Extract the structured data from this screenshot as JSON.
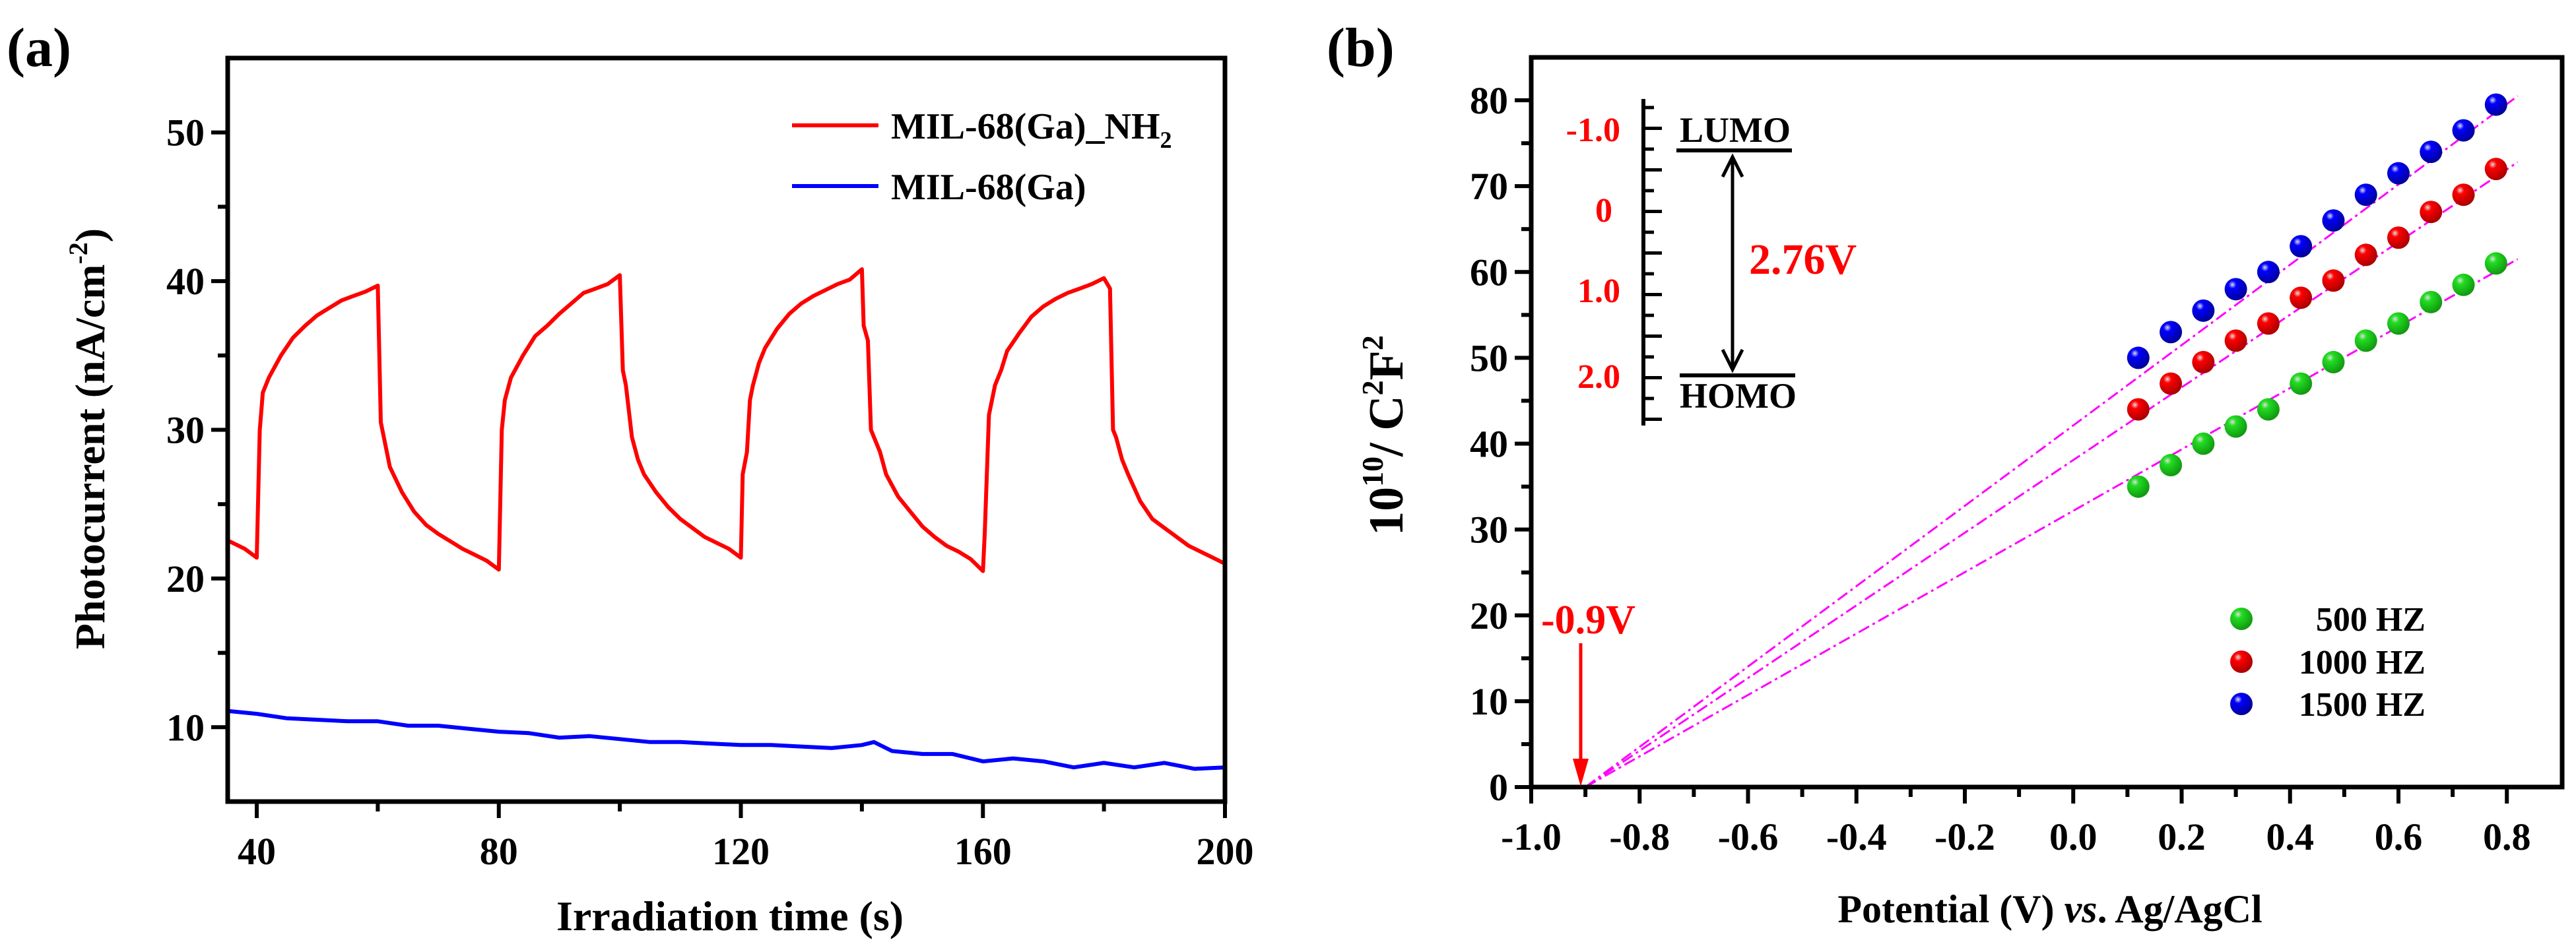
{
  "colors": {
    "red": "#ff0000",
    "blue": "#0000ff",
    "green": "#22dd22",
    "magenta": "#ff00ff",
    "axis": "#000000"
  },
  "chart_data": [
    {
      "panel_label": "(a)",
      "type": "line",
      "xlabel": "Irradiation time (s)",
      "ylabel": "Photocurrent (nA/cm",
      "ylabel_sup": "-2",
      "ylabel_close": ")",
      "xlim": [
        35.2,
        200
      ],
      "ylim": [
        5,
        55
      ],
      "xticks": [
        40,
        80,
        120,
        160,
        200
      ],
      "yticks": [
        10,
        20,
        30,
        40,
        50
      ],
      "legend": "top-right",
      "series": [
        {
          "name": "MIL-68(Ga)_NH",
          "name_sub": "2",
          "color": "#ff0000",
          "x": [
            35,
            38,
            40,
            40.5,
            41,
            42,
            44,
            46,
            48,
            50,
            52,
            54,
            56,
            58,
            60,
            60.5,
            62,
            64,
            66,
            68,
            70,
            72,
            74,
            76,
            78,
            80,
            80.5,
            81,
            82,
            84,
            86,
            88,
            90,
            92,
            94,
            96,
            98,
            100,
            100.5,
            101,
            102,
            103,
            104,
            106,
            108,
            110,
            112,
            114,
            116,
            118,
            120,
            120.3,
            121,
            121.5,
            122,
            123,
            124,
            126,
            128,
            130,
            132,
            134,
            136,
            138,
            140,
            140.3,
            141,
            141.5,
            142,
            143,
            144,
            146,
            148,
            150,
            152,
            154,
            156,
            158,
            160,
            160.3,
            161,
            162,
            163,
            164,
            166,
            168,
            170,
            172,
            174,
            176,
            178,
            180,
            181,
            181.5,
            182,
            183,
            184,
            186,
            188,
            190,
            192,
            194,
            196,
            198,
            200
          ],
          "y": [
            22.6,
            22.0,
            21.4,
            30,
            32.5,
            33.5,
            35.0,
            36.2,
            37.0,
            37.7,
            38.2,
            38.7,
            39.0,
            39.3,
            39.7,
            30.5,
            27.5,
            25.8,
            24.5,
            23.6,
            23.0,
            22.5,
            22.0,
            21.6,
            21.2,
            20.6,
            30,
            32,
            33.5,
            35,
            36.3,
            37,
            37.8,
            38.5,
            39.2,
            39.5,
            39.8,
            40.4,
            34,
            33,
            29.5,
            28,
            27,
            25.8,
            24.8,
            24,
            23.4,
            22.8,
            22.4,
            22,
            21.4,
            27,
            28.5,
            32,
            33,
            34.5,
            35.5,
            36.8,
            37.8,
            38.5,
            39,
            39.4,
            39.8,
            40.1,
            40.8,
            37,
            36,
            30,
            29.5,
            28.5,
            27,
            25.5,
            24.5,
            23.5,
            22.8,
            22.2,
            21.8,
            21.3,
            20.5,
            23,
            31,
            33,
            34,
            35.3,
            36.5,
            37.6,
            38.3,
            38.8,
            39.2,
            39.5,
            39.8,
            40.2,
            39.5,
            30,
            29.5,
            28,
            27,
            25.2,
            24,
            23.4,
            22.8,
            22.2,
            21.8,
            21.4,
            21.0
          ]
        },
        {
          "name": "MIL-68(Ga)",
          "color": "#0000ff",
          "x": [
            35,
            40,
            45,
            50,
            55,
            60,
            65,
            70,
            75,
            80,
            85,
            90,
            95,
            100,
            105,
            110,
            115,
            120,
            125,
            130,
            135,
            140,
            142,
            145,
            150,
            155,
            160,
            165,
            170,
            175,
            180,
            185,
            190,
            195,
            200
          ],
          "y": [
            11.1,
            10.9,
            10.6,
            10.5,
            10.4,
            10.4,
            10.1,
            10.1,
            9.9,
            9.7,
            9.6,
            9.3,
            9.4,
            9.2,
            9.0,
            9.0,
            8.9,
            8.8,
            8.8,
            8.7,
            8.6,
            8.8,
            9.0,
            8.4,
            8.2,
            8.2,
            7.7,
            7.9,
            7.7,
            7.3,
            7.6,
            7.3,
            7.6,
            7.2,
            7.3
          ]
        }
      ]
    },
    {
      "panel_label": "(b)",
      "type": "scatter",
      "xlabel_a": "Potential (V) ",
      "xlabel_b": "vs",
      "xlabel_c": ". Ag/AgCl",
      "ylabel_a": "10",
      "ylabel_b": "10",
      "ylabel_c": "/ C",
      "ylabel_d": "2",
      "ylabel_e": "F",
      "ylabel_f": "2",
      "xlim": [
        -1.0,
        0.902
      ],
      "ylim": [
        0,
        85
      ],
      "xticks": [
        "-1.0",
        "-0.8",
        "-0.6",
        "-0.4",
        "-0.2",
        "0.0",
        "0.2",
        "0.4",
        "0.6",
        "0.8"
      ],
      "yticks": [
        0,
        10,
        20,
        30,
        40,
        50,
        60,
        70,
        80
      ],
      "legend": "lower-right",
      "x": [
        0.12,
        0.18,
        0.24,
        0.3,
        0.36,
        0.42,
        0.48,
        0.54,
        0.6,
        0.66,
        0.72,
        0.78
      ],
      "series": [
        {
          "name": "500 HZ",
          "color": "#22dd22",
          "y": [
            35,
            37.5,
            40,
            42,
            44,
            47,
            49.5,
            52,
            54,
            56.5,
            58.5,
            61
          ]
        },
        {
          "name": "1000 HZ",
          "color": "#ff0000",
          "y": [
            44,
            47,
            49.5,
            52,
            54,
            57,
            59,
            62,
            64,
            67,
            69,
            72
          ]
        },
        {
          "name": "1500 HZ",
          "color": "#0000ff",
          "y": [
            50,
            53,
            55.5,
            58,
            60,
            63,
            66,
            69,
            71.5,
            74,
            76.5,
            79.5
          ]
        }
      ],
      "fit_lines": {
        "x_intercept": -0.9,
        "x_end": 0.82,
        "y_end": [
          61.5,
          72.8,
          80.5
        ]
      },
      "annotations": {
        "flatband": "-0.9V",
        "gap": "2.76V",
        "lumo": "LUMO",
        "homo": "HOMO",
        "energy_scale": [
          "-1.0",
          "0",
          "1.0",
          "2.0"
        ]
      }
    }
  ]
}
